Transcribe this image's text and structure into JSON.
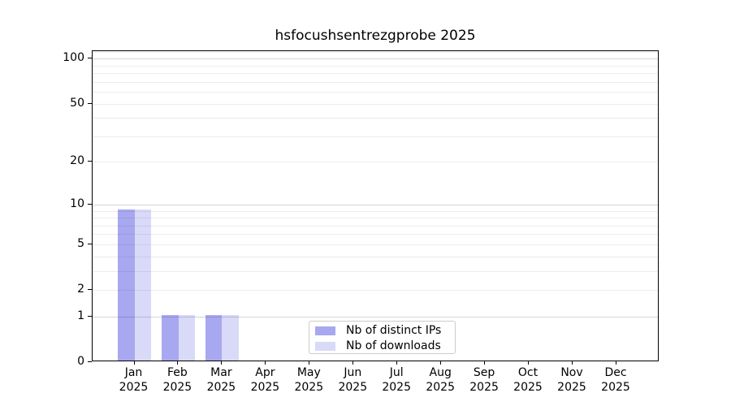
{
  "title": "hsfocushsentrezgprobe 2025",
  "chart_data": {
    "type": "bar",
    "title": "hsfocushsentrezgprobe 2025",
    "categories": [
      "Jan",
      "Feb",
      "Mar",
      "Apr",
      "May",
      "Jun",
      "Jul",
      "Aug",
      "Sep",
      "Oct",
      "Nov",
      "Dec"
    ],
    "category_year": "2025",
    "series": [
      {
        "name": "Nb of distinct IPs",
        "color": "rgba(25,25,215,0.38)",
        "values": [
          9,
          1,
          1,
          0,
          0,
          0,
          0,
          0,
          0,
          0,
          0,
          0
        ]
      },
      {
        "name": "Nb of downloads",
        "color": "rgba(25,25,215,0.165)",
        "values": [
          9,
          1,
          1,
          0,
          0,
          0,
          0,
          0,
          0,
          0,
          0,
          0
        ]
      }
    ],
    "xlabel": "",
    "ylabel": "",
    "yscale": "log1p",
    "ylim": [
      0,
      112
    ],
    "yticks": [
      0,
      1,
      2,
      5,
      10,
      20,
      50,
      100
    ],
    "major_gridlines": [
      1,
      10,
      100
    ],
    "minor_gridlines": [
      2,
      3,
      4,
      5,
      6,
      7,
      8,
      9,
      20,
      30,
      40,
      50,
      60,
      70,
      80,
      90,
      110
    ],
    "grid": true,
    "legend_position": "inside-bottom-center"
  },
  "colors": {
    "background": "#ffffff",
    "axis": "#000000",
    "grid_major": "#d4d4d4",
    "grid_minor": "#ececec",
    "legend_border": "#cccccc",
    "text": "#000000"
  }
}
